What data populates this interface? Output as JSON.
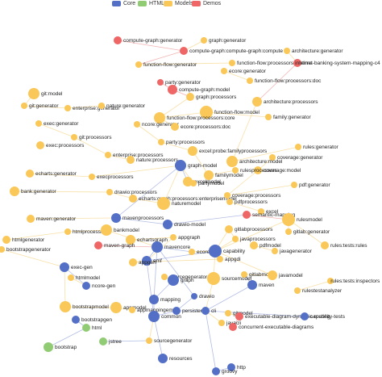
{
  "legend": [
    {
      "label": "Core",
      "color": "#5470c6"
    },
    {
      "label": "HTML",
      "color": "#91cc75"
    },
    {
      "label": "Models",
      "color": "#fac858"
    },
    {
      "label": "Demos",
      "color": "#ee6666"
    }
  ],
  "categories": {
    "Core": "#5470c6",
    "HTML": "#91cc75",
    "Models": "#fac858",
    "Demos": "#ee6666"
  },
  "edge_colors": {
    "Core": "#9aa7dd",
    "Models": "#f5d58a",
    "Demos": "#ef9a9a"
  },
  "nodes": [
    {
      "id": "compute-graph-generator",
      "label": "compute-graph:generator",
      "cat": "Demos"
    },
    {
      "id": "graph-generator",
      "label": "graph:generator",
      "cat": "Models"
    },
    {
      "id": "compute-graph-compute",
      "label": "compute-graph:compute-graph:compute",
      "cat": "Demos"
    },
    {
      "id": "architecture-generator",
      "label": "architecture:generator",
      "cat": "Models"
    },
    {
      "id": "function-flow-generator",
      "label": "function-flow:generator",
      "cat": "Models"
    },
    {
      "id": "function-flow-processors-runtime",
      "label": "function-flow:processors:runtime",
      "cat": "Models"
    },
    {
      "id": "internet-banking",
      "label": "internet-banking-system-mapping-c4",
      "cat": "Demos"
    },
    {
      "id": "ecore-generator",
      "label": "ecore:generator",
      "cat": "Models"
    },
    {
      "id": "party-generator",
      "label": "party:generator",
      "cat": "Demos"
    },
    {
      "id": "function-flow-processors-doc",
      "label": "function-flow:processors:doc",
      "cat": "Models"
    },
    {
      "id": "compute-graph-model",
      "label": "compute-graph:model",
      "cat": "Demos"
    },
    {
      "id": "git-model",
      "label": "git:model",
      "cat": "Models"
    },
    {
      "id": "graph-processors",
      "label": "graph:processors",
      "cat": "Models"
    },
    {
      "id": "architecture-processors",
      "label": "architecture:processors",
      "cat": "Models"
    },
    {
      "id": "git-generator",
      "label": "git:generator",
      "cat": "Models"
    },
    {
      "id": "enterprise-generator",
      "label": "enterprise:generator",
      "cat": "Models"
    },
    {
      "id": "nature-generator",
      "label": "nature:generator",
      "cat": "Models"
    },
    {
      "id": "function-flow-model",
      "label": "function-flow:model",
      "cat": "Models"
    },
    {
      "id": "function-flow-processors-core",
      "label": "function-flow:processors:core",
      "cat": "Models"
    },
    {
      "id": "exec-generator",
      "label": "exec:generator",
      "cat": "Models"
    },
    {
      "id": "family-generator",
      "label": "family:generator",
      "cat": "Models"
    },
    {
      "id": "ncore-generator",
      "label": "ncore:generator",
      "cat": "Models"
    },
    {
      "id": "ecore-processors-doc",
      "label": "ecore:processors:doc",
      "cat": "Models"
    },
    {
      "id": "git-processors",
      "label": "git:processors",
      "cat": "Models"
    },
    {
      "id": "exec-processors",
      "label": "exec:processors",
      "cat": "Models"
    },
    {
      "id": "party-processors",
      "label": "party:processors",
      "cat": "Models"
    },
    {
      "id": "rules-generator",
      "label": "rules:generator",
      "cat": "Models"
    },
    {
      "id": "excel-probe-family",
      "label": "excel:probe:familyprocessors",
      "cat": "Models"
    },
    {
      "id": "coverage-generator",
      "label": "coverage:generator",
      "cat": "Models"
    },
    {
      "id": "enterprise-processors",
      "label": "enterprise:processors",
      "cat": "Models"
    },
    {
      "id": "nature-processors",
      "label": "nature:processors",
      "cat": "Models"
    },
    {
      "id": "architecture-model",
      "label": "architecture:model",
      "cat": "Models"
    },
    {
      "id": "coverage-model",
      "label": "coverage:model",
      "cat": "Models"
    },
    {
      "id": "echarts-generator",
      "label": "echarts:generator",
      "cat": "Models"
    },
    {
      "id": "graph-model",
      "label": "graph-model",
      "cat": "Core"
    },
    {
      "id": "family-model",
      "label": "familymodel",
      "cat": "Models"
    },
    {
      "id": "rules-processors",
      "label": "rulesprocessors",
      "cat": "Models"
    },
    {
      "id": "exec-processors-2",
      "label": "execprocessors",
      "cat": "Models"
    },
    {
      "id": "excel-model",
      "label": "excelmodel",
      "cat": "Models"
    },
    {
      "id": "party-model",
      "label": "partymodel",
      "cat": "Models"
    },
    {
      "id": "pdf-generator",
      "label": "pdf:generator",
      "cat": "Models"
    },
    {
      "id": "bank-generator",
      "label": "bank:generator",
      "cat": "Models"
    },
    {
      "id": "drawio-processors",
      "label": "drawio:processors",
      "cat": "Models"
    },
    {
      "id": "echarts-graph-processors",
      "label": "echarts:graph:processors:enterprisemodel",
      "cat": "Models"
    },
    {
      "id": "nature-model",
      "label": "naturemodel",
      "cat": "Models"
    },
    {
      "id": "coverage-processors",
      "label": "coverage:processors",
      "cat": "Models"
    },
    {
      "id": "pdf-processors",
      "label": "pdfprocessors",
      "cat": "Models"
    },
    {
      "id": "excel",
      "label": "excel",
      "cat": "Models"
    },
    {
      "id": "maven-generator",
      "label": "maven:generator",
      "cat": "Models"
    },
    {
      "id": "maven-processors",
      "label": "mavenprocessors",
      "cat": "Core"
    },
    {
      "id": "drawio-model",
      "label": "drawio-model",
      "cat": "Core"
    },
    {
      "id": "semantic-mapping",
      "label": "semantic-mapping",
      "cat": "Demos"
    },
    {
      "id": "rules-model",
      "label": "rulesmodel",
      "cat": "Models"
    },
    {
      "id": "html-processors",
      "label": "htmlprocessors",
      "cat": "Models"
    },
    {
      "id": "bank-model",
      "label": "bankmodel",
      "cat": "Models"
    },
    {
      "id": "gitlab-processors",
      "label": "gitlabprocessors",
      "cat": "Models"
    },
    {
      "id": "html-generator",
      "label": "htmlgenerator",
      "cat": "Models"
    },
    {
      "id": "gitlab-generator",
      "label": "gitlab:generator",
      "cat": "Models"
    },
    {
      "id": "java-processors",
      "label": "javaprocessors",
      "cat": "Models"
    },
    {
      "id": "echarts-graph",
      "label": "echartsgraph",
      "cat": "Models"
    },
    {
      "id": "app-graph",
      "label": "appgraph",
      "cat": "Models"
    },
    {
      "id": "maven-graph",
      "label": "maven-graph",
      "cat": "Demos"
    },
    {
      "id": "maven-core",
      "label": "mavencore",
      "cat": "Core"
    },
    {
      "id": "pdf-model",
      "label": "pdfmodel",
      "cat": "Models"
    },
    {
      "id": "java-generator",
      "label": "javagenerator",
      "cat": "Models"
    },
    {
      "id": "rules-tests-rules",
      "label": "rules:tests:rules",
      "cat": "Models"
    },
    {
      "id": "bootstrap-generator",
      "label": "bootstrapgenerator",
      "cat": "Models"
    },
    {
      "id": "exec-gen",
      "label": "exec-gen",
      "cat": "Core"
    },
    {
      "id": "ecore-doc",
      "label": "ecoredoc",
      "cat": "Models"
    },
    {
      "id": "capability",
      "label": "capability",
      "cat": "Core"
    },
    {
      "id": "emf",
      "label": "emf",
      "cat": "Core"
    },
    {
      "id": "app-gen",
      "label": "appgen",
      "cat": "Models"
    },
    {
      "id": "app-gdi",
      "label": "appgdi",
      "cat": "Models"
    },
    {
      "id": "html-model",
      "label": "htmlmodel",
      "cat": "Models"
    },
    {
      "id": "ncore-gen",
      "label": "ncore-gen",
      "cat": "Core"
    },
    {
      "id": "source-generator",
      "label": "sourcegenerator",
      "cat": "Models"
    },
    {
      "id": "graph",
      "label": "graph",
      "cat": "Core"
    },
    {
      "id": "source-model",
      "label": "sourcemodel",
      "cat": "Models"
    },
    {
      "id": "gitlab-model",
      "label": "gitlabmodel",
      "cat": "Models"
    },
    {
      "id": "java-model",
      "label": "javamodel",
      "cat": "Models"
    },
    {
      "id": "rules-tests-inspectors",
      "label": "rules:tests:inspectors",
      "cat": "Models"
    },
    {
      "id": "bootstrap-model",
      "label": "bootstrapmodel",
      "cat": "Models"
    },
    {
      "id": "app-model",
      "label": "appmodel",
      "cat": "Models"
    },
    {
      "id": "mapping",
      "label": "mapping",
      "cat": "Core"
    },
    {
      "id": "drawio",
      "label": "drawio",
      "cat": "Core"
    },
    {
      "id": "maven",
      "label": "maven",
      "cat": "Core"
    },
    {
      "id": "rules-test-analyzer",
      "label": "rulestestanalyzer",
      "cat": "Models"
    },
    {
      "id": "app-mapping",
      "label": "appmappingemf",
      "cat": "Models"
    },
    {
      "id": "persistence",
      "label": "persistence",
      "cat": "Core"
    },
    {
      "id": "cli",
      "label": "cli",
      "cat": "Core"
    },
    {
      "id": "git-model-2",
      "label": "gitmodel",
      "cat": "Models"
    },
    {
      "id": "exec-diagram",
      "label": "executable-diagram-dynamic-routing",
      "cat": "Demos"
    },
    {
      "id": "capability-tests",
      "label": "capability-tests",
      "cat": "Core"
    },
    {
      "id": "bootstrap-gen",
      "label": "bootstrapgen",
      "cat": "Core"
    },
    {
      "id": "common",
      "label": "common",
      "cat": "Core"
    },
    {
      "id": "html",
      "label": "html",
      "cat": "HTML"
    },
    {
      "id": "java-cli",
      "label": "javacli",
      "cat": "Models"
    },
    {
      "id": "concurrent-diagrams",
      "label": "concurrent-executable-diagrams",
      "cat": "Demos"
    },
    {
      "id": "jstree",
      "label": "jstree",
      "cat": "HTML"
    },
    {
      "id": "source-generator-2",
      "label": "sourcegenerator",
      "cat": "Models"
    },
    {
      "id": "bootstrap",
      "label": "bootstrap",
      "cat": "HTML"
    },
    {
      "id": "resources",
      "label": "resources",
      "cat": "Core"
    },
    {
      "id": "http",
      "label": "http",
      "cat": "Core"
    },
    {
      "id": "groovy",
      "label": "groovy",
      "cat": "Core"
    }
  ],
  "edges": [
    [
      "compute-graph-generator",
      "compute-graph-compute"
    ],
    [
      "graph-generator",
      "compute-graph-compute"
    ],
    [
      "compute-graph-compute",
      "function-flow-generator"
    ],
    [
      "architecture-generator",
      "internet-banking"
    ],
    [
      "function-flow-generator",
      "function-flow-processors-runtime"
    ],
    [
      "internet-banking",
      "architecture-processors"
    ],
    [
      "party-generator",
      "compute-graph-model"
    ],
    [
      "compute-graph-model",
      "graph-processors"
    ],
    [
      "ecore-generator",
      "function-flow-processors-doc"
    ],
    [
      "graph-processors",
      "function-flow-processors-core"
    ],
    [
      "git-model",
      "git-generator"
    ],
    [
      "git-generator",
      "enterprise-generator"
    ],
    [
      "enterprise-generator",
      "nature-generator"
    ],
    [
      "function-flow-model",
      "function-flow-processors-core"
    ],
    [
      "function-flow-processors-core",
      "ecore-processors-doc"
    ],
    [
      "exec-generator",
      "git-processors"
    ],
    [
      "family-generator",
      "function-flow-model"
    ],
    [
      "ncore-generator",
      "party-processors"
    ],
    [
      "git-processors",
      "enterprise-processors"
    ],
    [
      "enterprise-processors",
      "nature-processors"
    ],
    [
      "party-processors",
      "excel-probe-family"
    ],
    [
      "excel-probe-family",
      "family-model"
    ],
    [
      "architecture-processors",
      "architecture-model"
    ],
    [
      "rules-generator",
      "architecture-model"
    ],
    [
      "coverage-generator",
      "coverage-model"
    ],
    [
      "echarts-generator",
      "exec-processors-2"
    ],
    [
      "exec-processors-2",
      "graph-model"
    ],
    [
      "graph-model",
      "excel-model"
    ],
    [
      "family-model",
      "rules-processors"
    ],
    [
      "excel-model",
      "party-model"
    ],
    [
      "pdf-generator",
      "coverage-processors"
    ],
    [
      "bank-generator",
      "drawio-processors"
    ],
    [
      "drawio-processors",
      "echarts-graph-processors"
    ],
    [
      "echarts-graph-processors",
      "nature-model"
    ],
    [
      "coverage-model",
      "coverage-processors"
    ],
    [
      "coverage-processors",
      "pdf-processors"
    ],
    [
      "pdf-processors",
      "excel"
    ],
    [
      "maven-generator",
      "maven-processors"
    ],
    [
      "maven-processors",
      "drawio-model"
    ],
    [
      "drawio-model",
      "semantic-mapping"
    ],
    [
      "semantic-mapping",
      "rules-model"
    ],
    [
      "html-processors",
      "bank-model"
    ],
    [
      "bank-model",
      "maven-core"
    ],
    [
      "gitlab-processors",
      "java-processors"
    ],
    [
      "html-generator",
      "html-processors"
    ],
    [
      "gitlab-generator",
      "rules-model"
    ],
    [
      "echarts-graph",
      "app-graph"
    ],
    [
      "maven-graph",
      "maven-core"
    ],
    [
      "maven-core",
      "ecore-doc"
    ],
    [
      "pdf-model",
      "java-generator"
    ],
    [
      "rules-tests-rules",
      "rules-model"
    ],
    [
      "bootstrap-generator",
      "exec-gen"
    ],
    [
      "exec-gen",
      "ncore-gen"
    ],
    [
      "ecore-doc",
      "capability"
    ],
    [
      "emf",
      "maven-core"
    ],
    [
      "app-gen",
      "emf"
    ],
    [
      "app-gdi",
      "app-gen"
    ],
    [
      "html-model",
      "ncore-gen"
    ],
    [
      "source-generator",
      "graph"
    ],
    [
      "graph",
      "mapping"
    ],
    [
      "source-model",
      "capability"
    ],
    [
      "gitlab-model",
      "java-model"
    ],
    [
      "rules-tests-inspectors",
      "rules-test-analyzer"
    ],
    [
      "bootstrap-model",
      "app-model"
    ],
    [
      "app-model",
      "app-mapping"
    ],
    [
      "mapping",
      "common"
    ],
    [
      "drawio",
      "persistence"
    ],
    [
      "maven",
      "gitlab-model"
    ],
    [
      "persistence",
      "common"
    ],
    [
      "cli",
      "persistence"
    ],
    [
      "git-model-2",
      "exec-diagram"
    ],
    [
      "exec-diagram",
      "concurrent-diagrams"
    ],
    [
      "capability-tests",
      "cli"
    ],
    [
      "bootstrap-gen",
      "html"
    ],
    [
      "html",
      "bootstrap"
    ],
    [
      "java-cli",
      "cli"
    ],
    [
      "jstree",
      "source-generator-2"
    ],
    [
      "source-generator-2",
      "common"
    ],
    [
      "resources",
      "common"
    ],
    [
      "http",
      "groovy"
    ],
    [
      "groovy",
      "cli"
    ],
    [
      "common",
      "emf"
    ],
    [
      "emf",
      "capability"
    ],
    [
      "mapping",
      "maven-core"
    ],
    [
      "party-model",
      "graph-model"
    ],
    [
      "nature-model",
      "graph-model"
    ],
    [
      "java-processors",
      "capability"
    ],
    [
      "java-model",
      "capability"
    ],
    [
      "rules-model",
      "capability"
    ],
    [
      "app-graph",
      "emf"
    ],
    [
      "maven-processors",
      "graph-model"
    ],
    [
      "bootstrap-model",
      "exec-gen"
    ],
    [
      "drawio",
      "maven-core"
    ],
    [
      "cli",
      "maven"
    ],
    [
      "source-model",
      "cli"
    ],
    [
      "gitlab-processors",
      "capability"
    ]
  ]
}
